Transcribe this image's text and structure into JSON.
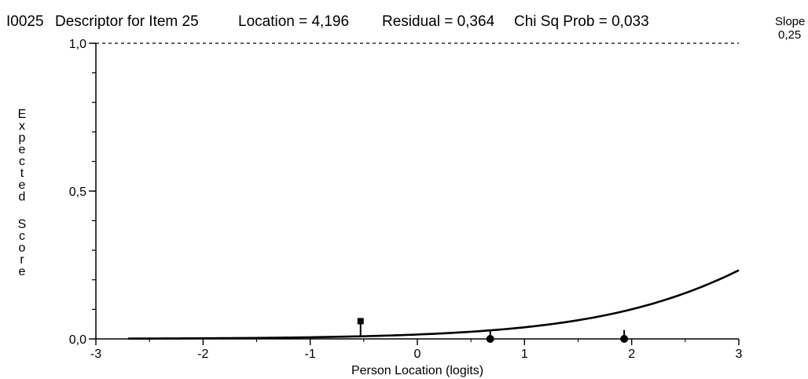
{
  "header": {
    "item_id": "I0025",
    "descriptor": "Descriptor for Item 25",
    "location_text": "Location = 4,196",
    "residual_text": "Residual = 0,364",
    "chisq_text": "Chi Sq Prob = 0,033",
    "slope_label": "Slope",
    "slope_value": "0,25"
  },
  "chart_data": {
    "type": "line",
    "title": "",
    "xlabel": "Person Location (logits)",
    "ylabel": "Expected Score",
    "xlim": [
      -3,
      3
    ],
    "ylim": [
      0,
      1
    ],
    "x_ticks": [
      -3,
      -2,
      -1,
      0,
      1,
      2,
      3
    ],
    "x_tick_labels": [
      "-3",
      "-2",
      "-1",
      "0",
      "1",
      "2",
      "3"
    ],
    "y_ticks": [
      0,
      0.5,
      1
    ],
    "y_tick_labels": [
      "0,0",
      "0,5",
      "1,0"
    ],
    "y_minor_step": 0.1,
    "reference_line_y": 1.0,
    "expected_curve": {
      "location": 4.196,
      "slope": 0.25,
      "x_start": -2.7,
      "x_end": 3.0
    },
    "class_intervals": [
      {
        "x": -0.53,
        "observed": 0.06,
        "expected": 0.01,
        "marker": "square"
      },
      {
        "x": 0.68,
        "observed": 0.0,
        "expected": 0.03,
        "marker": "circle"
      },
      {
        "x": 1.93,
        "observed": 0.0,
        "expected": 0.03,
        "marker": "circle"
      }
    ],
    "grid": false
  }
}
